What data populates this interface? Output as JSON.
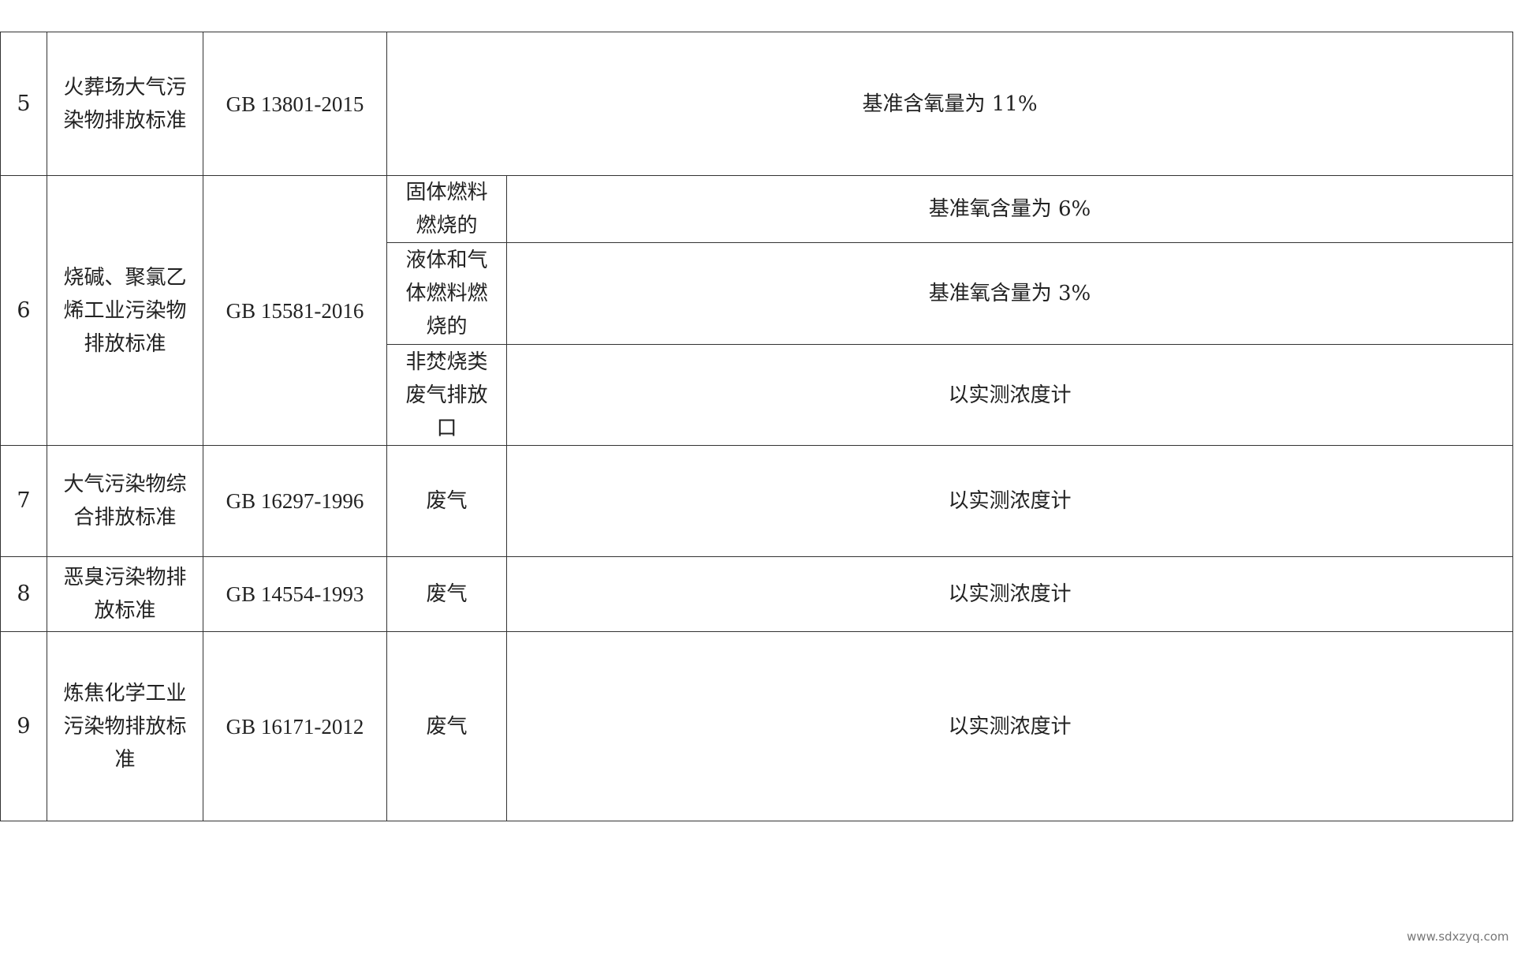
{
  "table": {
    "rows": [
      {
        "no": "5",
        "name": "火葬场大气污染物排放标准",
        "code": "GB 13801-2015",
        "note": "基准含氧量为 11%"
      },
      {
        "no": "6",
        "name": "烧碱、聚氯乙烯工业污染物排放标准",
        "code": "GB 15581-2016",
        "subrows": [
          {
            "type": "固体燃料燃烧的",
            "note": "基准氧含量为 6%"
          },
          {
            "type": "液体和气体燃料燃烧的",
            "note": "基准氧含量为 3%"
          },
          {
            "type": "非焚烧类废气排放口",
            "note": "以实测浓度计"
          }
        ]
      },
      {
        "no": "7",
        "name": "大气污染物综合排放标准",
        "code": "GB 16297-1996",
        "type": "废气",
        "note": "以实测浓度计"
      },
      {
        "no": "8",
        "name": "恶臭污染物排放标准",
        "code": "GB 14554-1993",
        "type": "废气",
        "note": "以实测浓度计"
      },
      {
        "no": "9",
        "name": "炼焦化学工业污染物排放标准",
        "code": "GB 16171-2012",
        "type": "废气",
        "note": "以实测浓度计"
      }
    ]
  },
  "watermark": "www.sdxzyq.com"
}
